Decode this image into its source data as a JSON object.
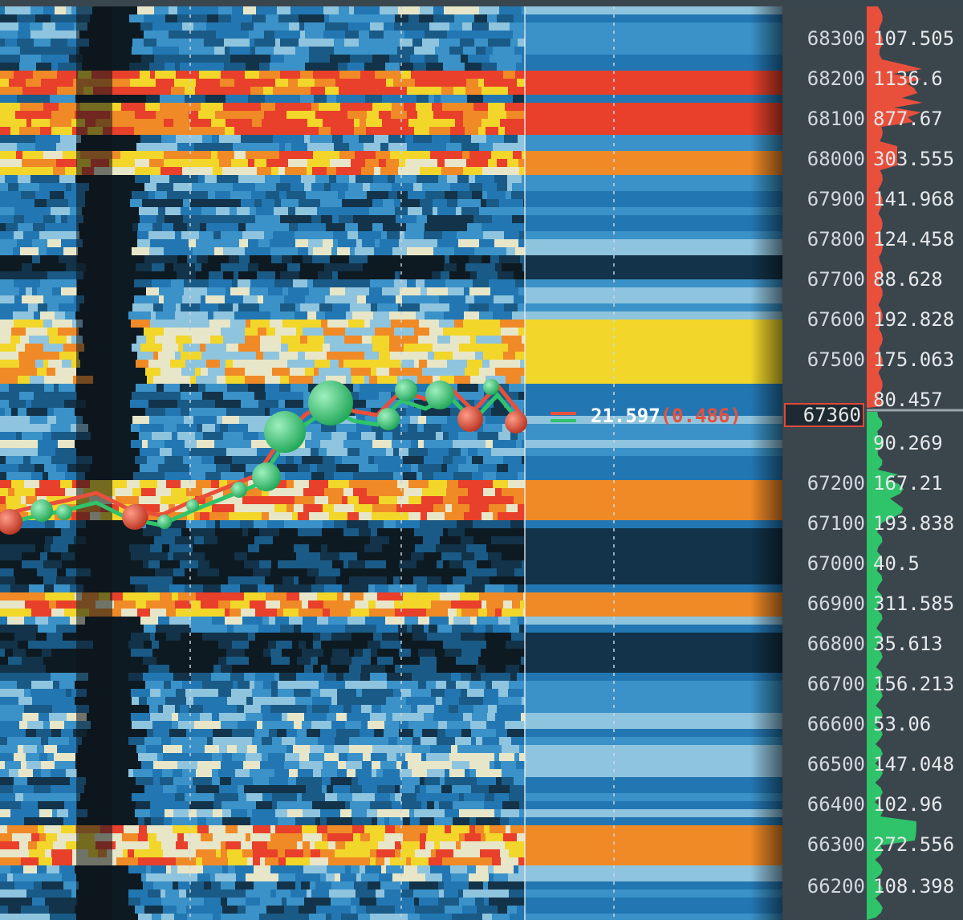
{
  "colors": {
    "bid": "#e8503c",
    "ask": "#2fc36a",
    "heat_low": "#0e1a22",
    "heat_mid": "#1f6da8",
    "heat_high": "#f2d62a",
    "heat_max": "#e8402a"
  },
  "price_axis": {
    "ticks": [
      "68300",
      "68200",
      "68100",
      "68000",
      "67900",
      "67800",
      "67700",
      "67600",
      "67500",
      "67200",
      "67100",
      "67000",
      "66900",
      "66800",
      "66700",
      "66600",
      "66500",
      "66400",
      "66300",
      "66200"
    ],
    "current_price": "67360"
  },
  "readout": {
    "value": "21.597",
    "delta": "(0.486)"
  },
  "volume_profile": {
    "values": [
      "107.505",
      "1136.6",
      "877.67",
      "303.555",
      "141.968",
      "124.458",
      "88.628",
      "192.828",
      "175.063",
      "80.457",
      "90.269",
      "167.21",
      "193.838",
      "40.5",
      "311.585",
      "35.613",
      "156.213",
      "53.06",
      "147.048",
      "102.96",
      "272.556",
      "108.398"
    ]
  }
}
